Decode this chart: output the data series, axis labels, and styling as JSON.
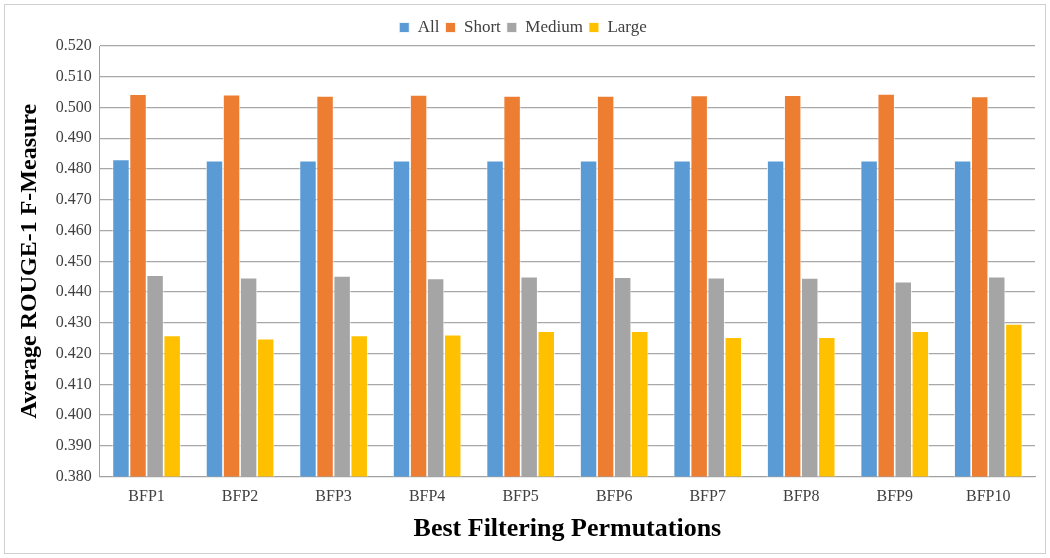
{
  "chart_data": {
    "type": "bar",
    "xlabel": "Best Filtering Permutations",
    "ylabel": "Average ROUGE-1 F-Measure",
    "categories": [
      "BFP1",
      "BFP2",
      "BFP3",
      "BFP4",
      "BFP5",
      "BFP6",
      "BFP7",
      "BFP8",
      "BFP9",
      "BFP10"
    ],
    "series": [
      {
        "name": "All",
        "color": "#5b9bd5",
        "values": [
          0.4831,
          0.4827,
          0.4827,
          0.4827,
          0.4827,
          0.4827,
          0.4827,
          0.4827,
          0.4827,
          0.4827
        ]
      },
      {
        "name": "Short",
        "color": "#ed7d31",
        "values": [
          0.5043,
          0.5042,
          0.5038,
          0.5041,
          0.5038,
          0.5038,
          0.5039,
          0.504,
          0.5044,
          0.5036
        ]
      },
      {
        "name": "Medium",
        "color": "#a5a5a5",
        "values": [
          0.4455,
          0.4447,
          0.4452,
          0.4444,
          0.445,
          0.4448,
          0.4447,
          0.4446,
          0.4434,
          0.445
        ]
      },
      {
        "name": "Large",
        "color": "#ffc000",
        "values": [
          0.4259,
          0.4248,
          0.4259,
          0.4261,
          0.4273,
          0.4273,
          0.4253,
          0.4253,
          0.4273,
          0.4296
        ]
      }
    ],
    "ylim": [
      0.38,
      0.52
    ],
    "yticks": [
      {
        "value": 0.38,
        "label": "0.380"
      },
      {
        "value": 0.39,
        "label": "0.390"
      },
      {
        "value": 0.4,
        "label": "0.400"
      },
      {
        "value": 0.41,
        "label": "0.410"
      },
      {
        "value": 0.42,
        "label": "0.420"
      },
      {
        "value": 0.43,
        "label": "0.430"
      },
      {
        "value": 0.44,
        "label": "0.440"
      },
      {
        "value": 0.45,
        "label": "0.450"
      },
      {
        "value": 0.46,
        "label": "0.460"
      },
      {
        "value": 0.47,
        "label": "0.470"
      },
      {
        "value": 0.48,
        "label": "0.480"
      },
      {
        "value": 0.49,
        "label": "0.490"
      },
      {
        "value": 0.5,
        "label": "0.500"
      },
      {
        "value": 0.51,
        "label": "0.510"
      },
      {
        "value": 0.52,
        "label": "0.520"
      }
    ],
    "grid": "y",
    "legend": "top"
  }
}
